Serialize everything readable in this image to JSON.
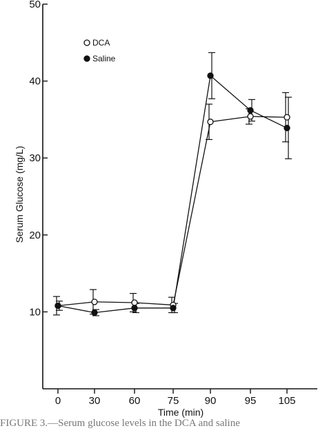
{
  "chart_data": {
    "type": "line",
    "title": "",
    "xlabel": "Time (min)",
    "ylabel": "Serum Glucose (mg/L)",
    "categories": [
      "0",
      "30",
      "60",
      "75",
      "90",
      "95",
      "105"
    ],
    "yticks": [
      10,
      20,
      30,
      40,
      50
    ],
    "ylim": [
      0,
      50
    ],
    "grid": false,
    "legend_position": "top-left",
    "series": [
      {
        "name": "DCA",
        "marker": "open-circle",
        "values": [
          10.8,
          11.3,
          11.2,
          10.9,
          34.7,
          35.4,
          35.3
        ],
        "error": [
          1.2,
          1.6,
          1.2,
          1.0,
          2.3,
          1.0,
          3.2
        ]
      },
      {
        "name": "Saline",
        "marker": "filled-circle",
        "values": [
          10.8,
          9.9,
          10.5,
          10.5,
          40.7,
          36.2,
          33.9
        ],
        "error": [
          0.6,
          0.4,
          0.6,
          0.6,
          3.0,
          1.4,
          4.0
        ]
      }
    ]
  },
  "caption": "FIGURE 3.—Serum glucose levels in the DCA and saline"
}
